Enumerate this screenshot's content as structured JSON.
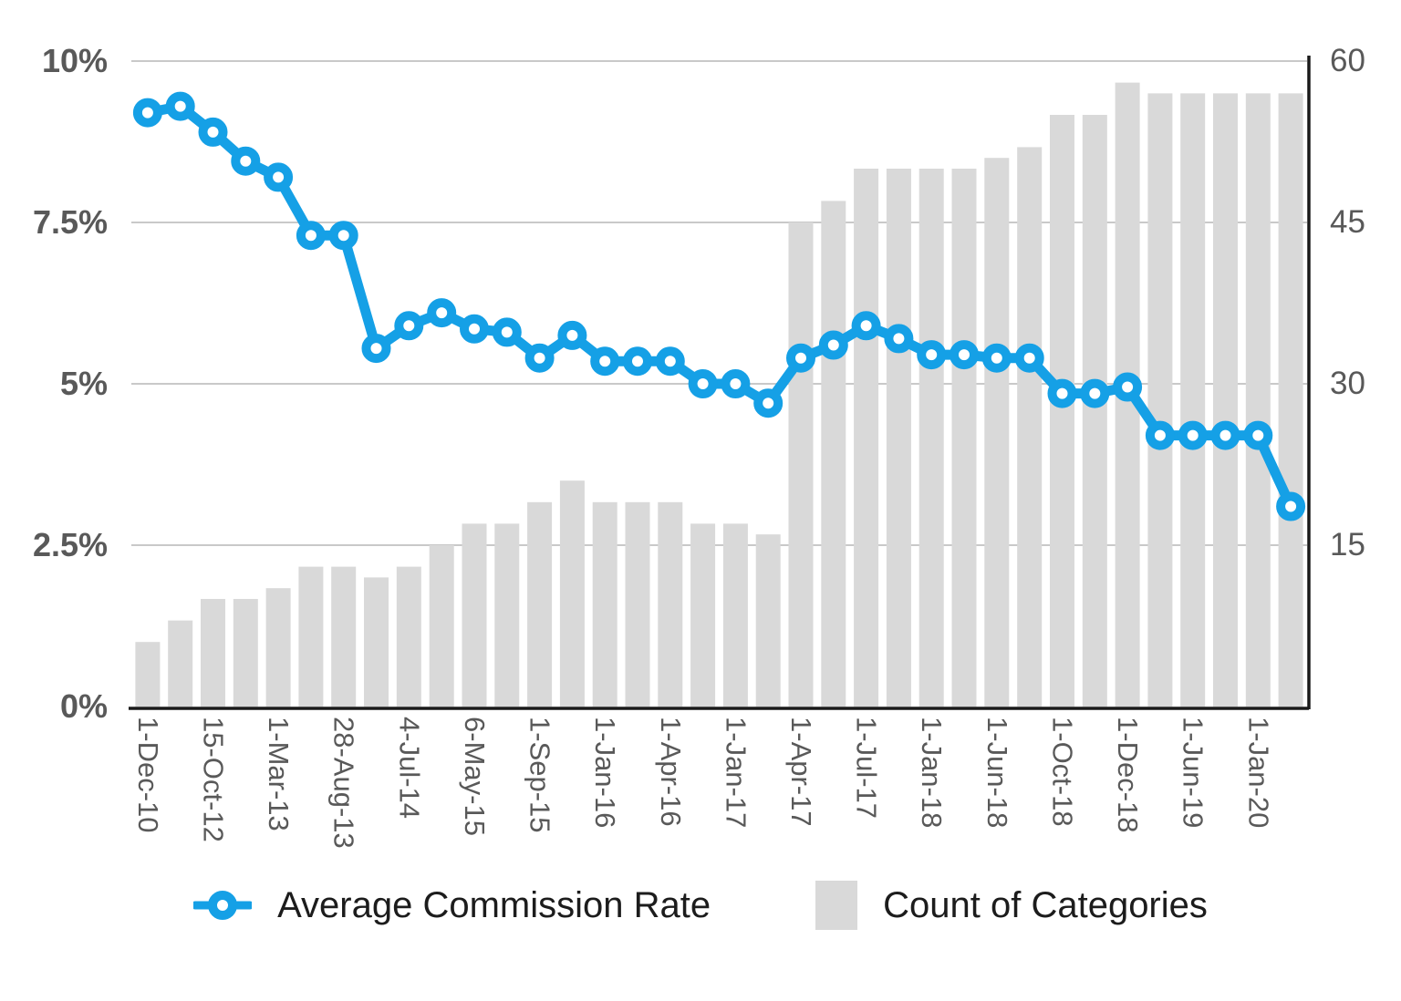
{
  "chart_data": {
    "type": "combo",
    "title": "",
    "grid": true,
    "legend_position": "bottom",
    "x_labels": [
      "1-Dec-10",
      "15-Oct-12",
      "1-Mar-13",
      "28-Aug-13",
      "4-Jul-14",
      "6-May-15",
      "1-Sep-15",
      "1-Jan-16",
      "1-Apr-16",
      "1-Jan-17",
      "1-Apr-17",
      "1-Jul-17",
      "1-Jan-18",
      "1-Jun-18",
      "1-Oct-18",
      "1-Dec-18",
      "1-Jun-19",
      "1-Jan-20"
    ],
    "x_label_every_n_points": 2,
    "left_axis": {
      "ticks": [
        "10%",
        "7.5%",
        "5%",
        "2.5%",
        "0%"
      ],
      "tick_values": [
        10,
        7.5,
        5,
        2.5,
        0
      ],
      "min": 0,
      "max": 10,
      "unit": "%"
    },
    "right_axis": {
      "ticks": [
        "60",
        "45",
        "30",
        "15"
      ],
      "tick_values": [
        60,
        45,
        30,
        15
      ],
      "min": 0,
      "max": 60
    },
    "series": [
      {
        "name": "Average Commission Rate",
        "type": "line",
        "axis": "left",
        "unit": "%",
        "color": "#15a0e6",
        "values": [
          9.2,
          9.3,
          8.9,
          8.45,
          8.2,
          7.3,
          7.3,
          5.55,
          5.9,
          6.1,
          5.85,
          5.8,
          5.4,
          5.75,
          5.35,
          5.35,
          5.35,
          5.0,
          5.0,
          4.7,
          5.4,
          5.6,
          5.9,
          5.7,
          5.45,
          5.45,
          5.4,
          5.4,
          4.85,
          4.85,
          4.95,
          4.2,
          4.2,
          4.2,
          4.2,
          3.1
        ]
      },
      {
        "name": "Count of Categories",
        "type": "bar",
        "axis": "right",
        "color": "#d9d9d9",
        "values": [
          6,
          8,
          10,
          10,
          11,
          13,
          13,
          12,
          13,
          15,
          17,
          17,
          19,
          21,
          19,
          19,
          19,
          17,
          17,
          16,
          45,
          47,
          50,
          50,
          50,
          50,
          51,
          52,
          55,
          55,
          58,
          57,
          57,
          57,
          57,
          57
        ]
      }
    ],
    "colors": {
      "line": "#15a0e6",
      "bar": "#d9d9d9",
      "gridline": "#c9c9c9",
      "axis_line": "#1a1a1a",
      "tick_text": "#595959",
      "legend_text": "#1c1c1c"
    }
  }
}
